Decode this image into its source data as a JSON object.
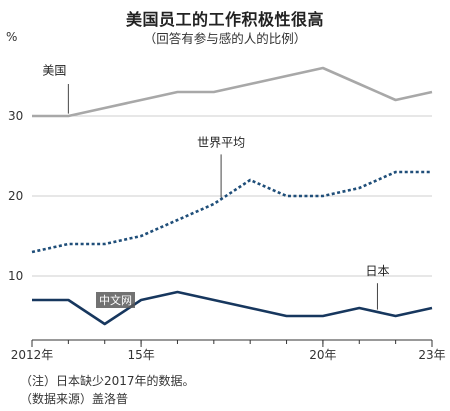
{
  "header": {
    "title": "美国员工的工作积极性很高",
    "subtitle": "（回答有参与感的人的比例）",
    "unit": "%"
  },
  "notes": {
    "note1": "（注）日本缺少2017年的数据。",
    "note2": "（数据来源）盖洛普"
  },
  "watermark": "中文网",
  "chart_data": {
    "type": "line",
    "x": [
      2012,
      2013,
      2014,
      2015,
      2016,
      2017,
      2018,
      2019,
      2020,
      2021,
      2022,
      2023
    ],
    "xlim": [
      2012,
      2023
    ],
    "ylim": [
      2,
      38
    ],
    "x_ticks": [
      {
        "value": 2012,
        "label": "2012年"
      },
      {
        "value": 2015,
        "label": "15年"
      },
      {
        "value": 2020,
        "label": "20年"
      },
      {
        "value": 2023,
        "label": "23年"
      }
    ],
    "y_ticks": [
      10,
      20,
      30
    ],
    "grid": true,
    "series": [
      {
        "name": "美国",
        "color": "#a8a8a8",
        "style": "solid",
        "values": [
          30,
          30,
          31,
          32,
          33,
          33,
          34,
          35,
          36,
          34,
          32,
          33
        ]
      },
      {
        "name": "世界平均",
        "color": "#1f4e79",
        "style": "dotted",
        "values": [
          13,
          14,
          14,
          15,
          17,
          19,
          22,
          20,
          20,
          21,
          23,
          23
        ]
      },
      {
        "name": "日本",
        "color": "#17375e",
        "style": "solid",
        "values": [
          7,
          7,
          4,
          7,
          8,
          null,
          6,
          5,
          5,
          6,
          5,
          6
        ]
      }
    ]
  }
}
